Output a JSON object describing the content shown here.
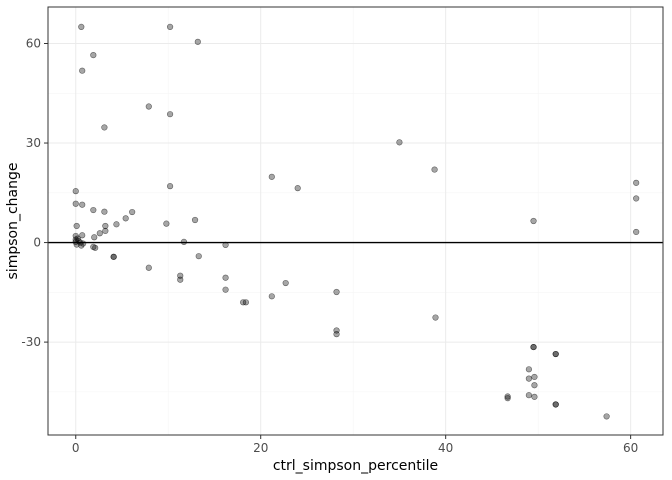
{
  "chart_data": {
    "type": "scatter",
    "xlabel": "ctrl_simpson_percentile",
    "ylabel": "simpson_change",
    "xlim": [
      -3,
      63.5
    ],
    "ylim": [
      -58,
      71
    ],
    "xticks": [
      0,
      20,
      40,
      60
    ],
    "yticks": [
      -30,
      0,
      30,
      60
    ],
    "hline": 0,
    "grid": true,
    "point_color": "#000000",
    "point_alpha": 0.35,
    "points": [
      [
        0.6,
        65
      ],
      [
        10.2,
        65
      ],
      [
        13.2,
        60.5
      ],
      [
        1.9,
        56.5
      ],
      [
        0.7,
        51.8
      ],
      [
        7.9,
        41
      ],
      [
        10.2,
        38.7
      ],
      [
        3.1,
        34.7
      ],
      [
        35,
        30.2
      ],
      [
        38.8,
        22
      ],
      [
        21.2,
        19.8
      ],
      [
        24,
        16.4
      ],
      [
        10.2,
        17
      ],
      [
        60.6,
        18
      ],
      [
        60.6,
        13.3
      ],
      [
        0,
        15.5
      ],
      [
        0,
        11.7
      ],
      [
        0.7,
        11.4
      ],
      [
        1.9,
        9.8
      ],
      [
        3.1,
        9.3
      ],
      [
        6.1,
        9.2
      ],
      [
        5.4,
        7.3
      ],
      [
        12.9,
        6.8
      ],
      [
        49.5,
        6.5
      ],
      [
        9.8,
        5.7
      ],
      [
        4.4,
        5.5
      ],
      [
        0.1,
        5
      ],
      [
        3.2,
        5
      ],
      [
        3.2,
        3.5
      ],
      [
        2.6,
        2.8
      ],
      [
        60.6,
        3.2
      ],
      [
        2,
        1.6
      ],
      [
        0.7,
        2.2
      ],
      [
        0,
        2
      ],
      [
        0.2,
        1.2
      ],
      [
        0,
        0.9
      ],
      [
        0.3,
        0.5
      ],
      [
        0,
        0.2
      ],
      [
        0.5,
        0
      ],
      [
        0.8,
        -0.3
      ],
      [
        0.1,
        -0.6
      ],
      [
        0.6,
        -0.9
      ],
      [
        1.9,
        -1.3
      ],
      [
        2.1,
        -1.6
      ],
      [
        11.7,
        0.2
      ],
      [
        16.2,
        -0.7
      ],
      [
        4.1,
        -4.3
      ],
      [
        4.1,
        -4.3
      ],
      [
        13.3,
        -4.1
      ],
      [
        7.9,
        -7.6
      ],
      [
        11.3,
        -10
      ],
      [
        11.3,
        -11.2
      ],
      [
        16.2,
        -10.6
      ],
      [
        22.7,
        -12.2
      ],
      [
        16.2,
        -14.2
      ],
      [
        28.2,
        -14.9
      ],
      [
        21.2,
        -16.2
      ],
      [
        18.4,
        -18
      ],
      [
        18.1,
        -18
      ],
      [
        38.9,
        -22.6
      ],
      [
        28.2,
        -26.5
      ],
      [
        28.2,
        -27.6
      ],
      [
        49.5,
        -31.5
      ],
      [
        49.5,
        -31.5
      ],
      [
        51.9,
        -33.6
      ],
      [
        51.9,
        -33.6
      ],
      [
        49,
        -38.2
      ],
      [
        49,
        -41
      ],
      [
        49.6,
        -40.5
      ],
      [
        49.6,
        -43
      ],
      [
        46.7,
        -46.4
      ],
      [
        46.7,
        -46.9
      ],
      [
        49,
        -46
      ],
      [
        49.6,
        -46.5
      ],
      [
        51.9,
        -48.8
      ],
      [
        51.9,
        -48.8
      ],
      [
        57.4,
        -52.4
      ]
    ]
  }
}
